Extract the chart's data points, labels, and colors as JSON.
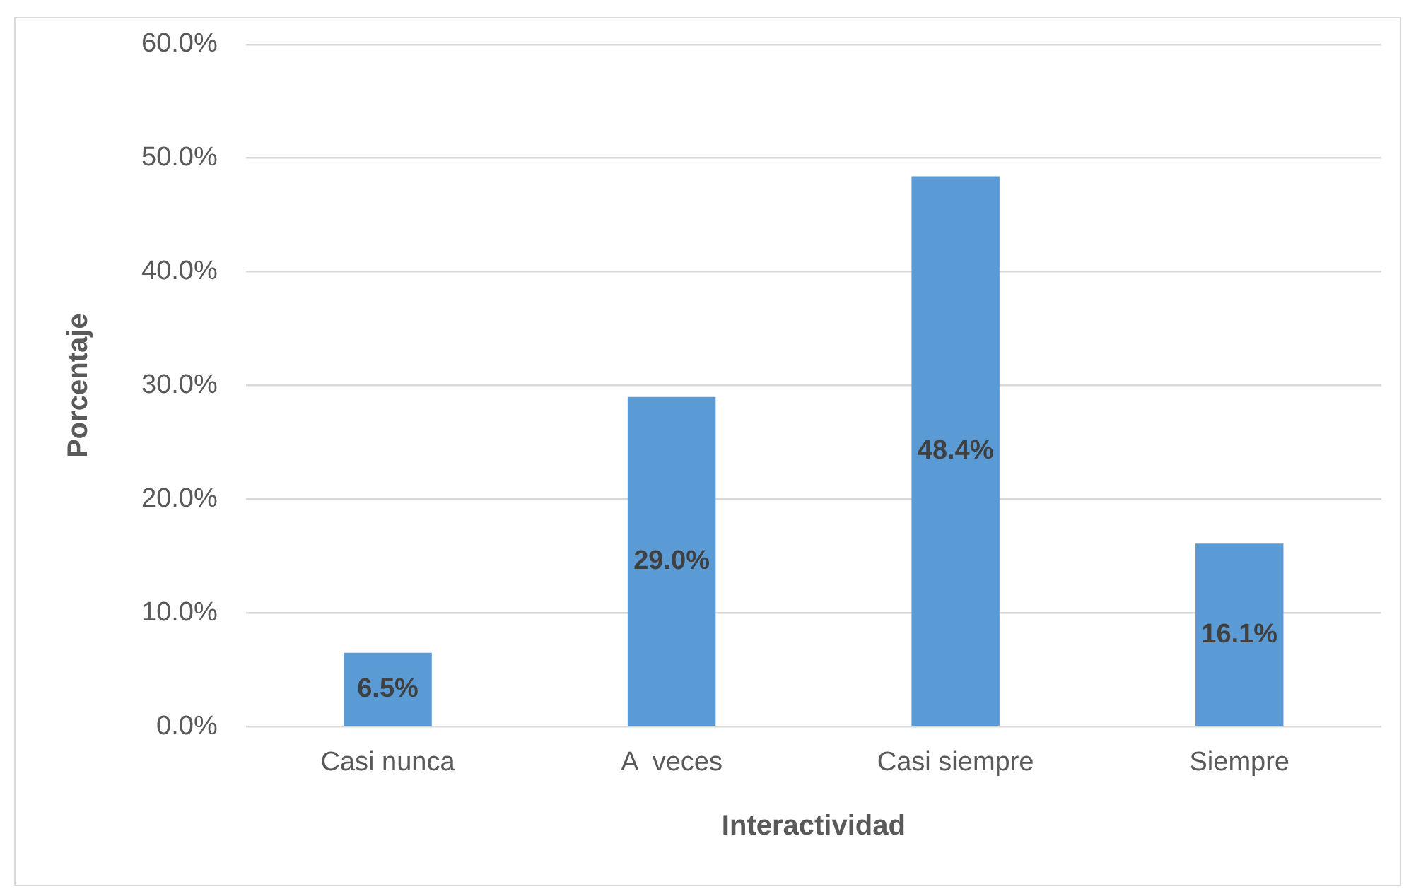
{
  "chart_data": {
    "type": "bar",
    "xlabel": "Interactividad",
    "ylabel": "Porcentaje",
    "categories": [
      "Casi nunca",
      "A  veces",
      "Casi siempre",
      "Siempre"
    ],
    "values": [
      6.5,
      29.0,
      48.4,
      16.1
    ],
    "value_labels": [
      "6.5%",
      "29.0%",
      "48.4%",
      "16.1%"
    ],
    "color": "#5b9bd5",
    "ylim": [
      0,
      60
    ],
    "yticks": [
      {
        "value": 0,
        "label": "0.0%"
      },
      {
        "value": 10,
        "label": "10.0%"
      },
      {
        "value": 20,
        "label": "20.0%"
      },
      {
        "value": 30,
        "label": "30.0%"
      },
      {
        "value": 40,
        "label": "40.0%"
      },
      {
        "value": 50,
        "label": "50.0%"
      },
      {
        "value": 60,
        "label": "60.0%"
      }
    ],
    "grid": "y",
    "legend": false
  }
}
